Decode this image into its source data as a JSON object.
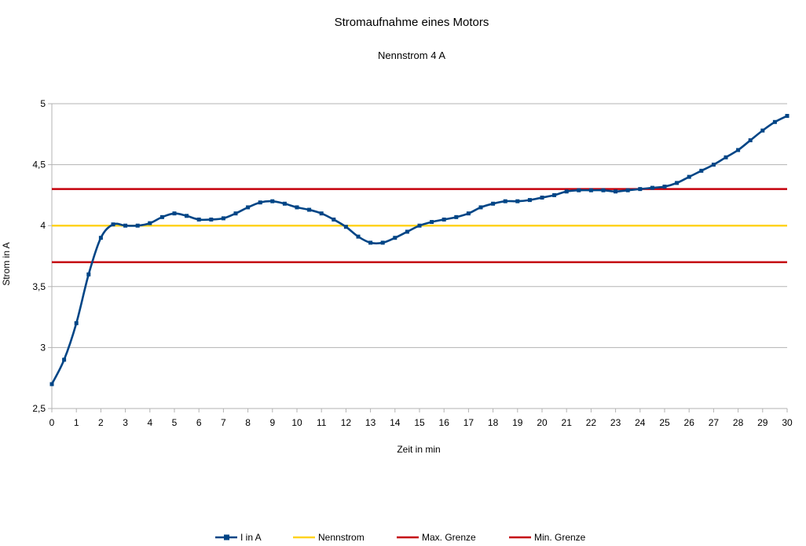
{
  "chart_data": {
    "type": "line",
    "title": "Stromaufnahme eines Motors",
    "subtitle": "Nennstrom 4 A",
    "xlabel": "Zeit in min",
    "ylabel": "Strom in A",
    "xlim": [
      0,
      30
    ],
    "ylim": [
      2.5,
      5
    ],
    "x_ticks": [
      "0",
      "1",
      "2",
      "3",
      "4",
      "5",
      "6",
      "7",
      "8",
      "9",
      "10",
      "11",
      "12",
      "13",
      "14",
      "15",
      "16",
      "17",
      "18",
      "19",
      "20",
      "21",
      "22",
      "23",
      "24",
      "25",
      "26",
      "27",
      "28",
      "29",
      "30"
    ],
    "y_ticks": [
      {
        "value": 2.5,
        "label": "2,5"
      },
      {
        "value": 3,
        "label": "3"
      },
      {
        "value": 3.5,
        "label": "3,5"
      },
      {
        "value": 4,
        "label": "4"
      },
      {
        "value": 4.5,
        "label": "4,5"
      },
      {
        "value": 5,
        "label": "5"
      }
    ],
    "grid": "horizontal",
    "legend_position": "bottom",
    "series": [
      {
        "name": "I in A",
        "color": "#004586",
        "marker": "square",
        "smooth": true,
        "x": [
          0,
          0.5,
          1,
          1.5,
          2,
          2.5,
          3,
          3.5,
          4,
          4.5,
          5,
          5.5,
          6,
          6.5,
          7,
          7.5,
          8,
          8.5,
          9,
          9.5,
          10,
          10.5,
          11,
          11.5,
          12,
          12.5,
          13,
          13.5,
          14,
          14.5,
          15,
          15.5,
          16,
          16.5,
          17,
          17.5,
          18,
          18.5,
          19,
          19.5,
          20,
          20.5,
          21,
          21.5,
          22,
          22.5,
          23,
          23.5,
          24,
          24.5,
          25,
          25.5,
          26,
          26.5,
          27,
          27.5,
          28,
          28.5,
          29,
          29.5,
          30
        ],
        "values": [
          2.7,
          2.9,
          3.2,
          3.6,
          3.9,
          4.01,
          4.0,
          4.0,
          4.02,
          4.07,
          4.1,
          4.08,
          4.05,
          4.05,
          4.06,
          4.1,
          4.15,
          4.19,
          4.2,
          4.18,
          4.15,
          4.13,
          4.1,
          4.05,
          3.99,
          3.91,
          3.86,
          3.86,
          3.9,
          3.95,
          4.0,
          4.03,
          4.05,
          4.07,
          4.1,
          4.15,
          4.18,
          4.2,
          4.2,
          4.21,
          4.23,
          4.25,
          4.28,
          4.29,
          4.29,
          4.29,
          4.28,
          4.29,
          4.3,
          4.31,
          4.32,
          4.35,
          4.4,
          4.45,
          4.5,
          4.56,
          4.62,
          4.7,
          4.78,
          4.85,
          4.9
        ]
      },
      {
        "name": "Nennstrom",
        "color": "#ffd320",
        "constant": 4.0
      },
      {
        "name": "Max. Grenze",
        "color": "#c5000b",
        "constant": 4.3
      },
      {
        "name": "Min. Grenze",
        "color": "#c5000b",
        "constant": 3.7
      }
    ]
  }
}
